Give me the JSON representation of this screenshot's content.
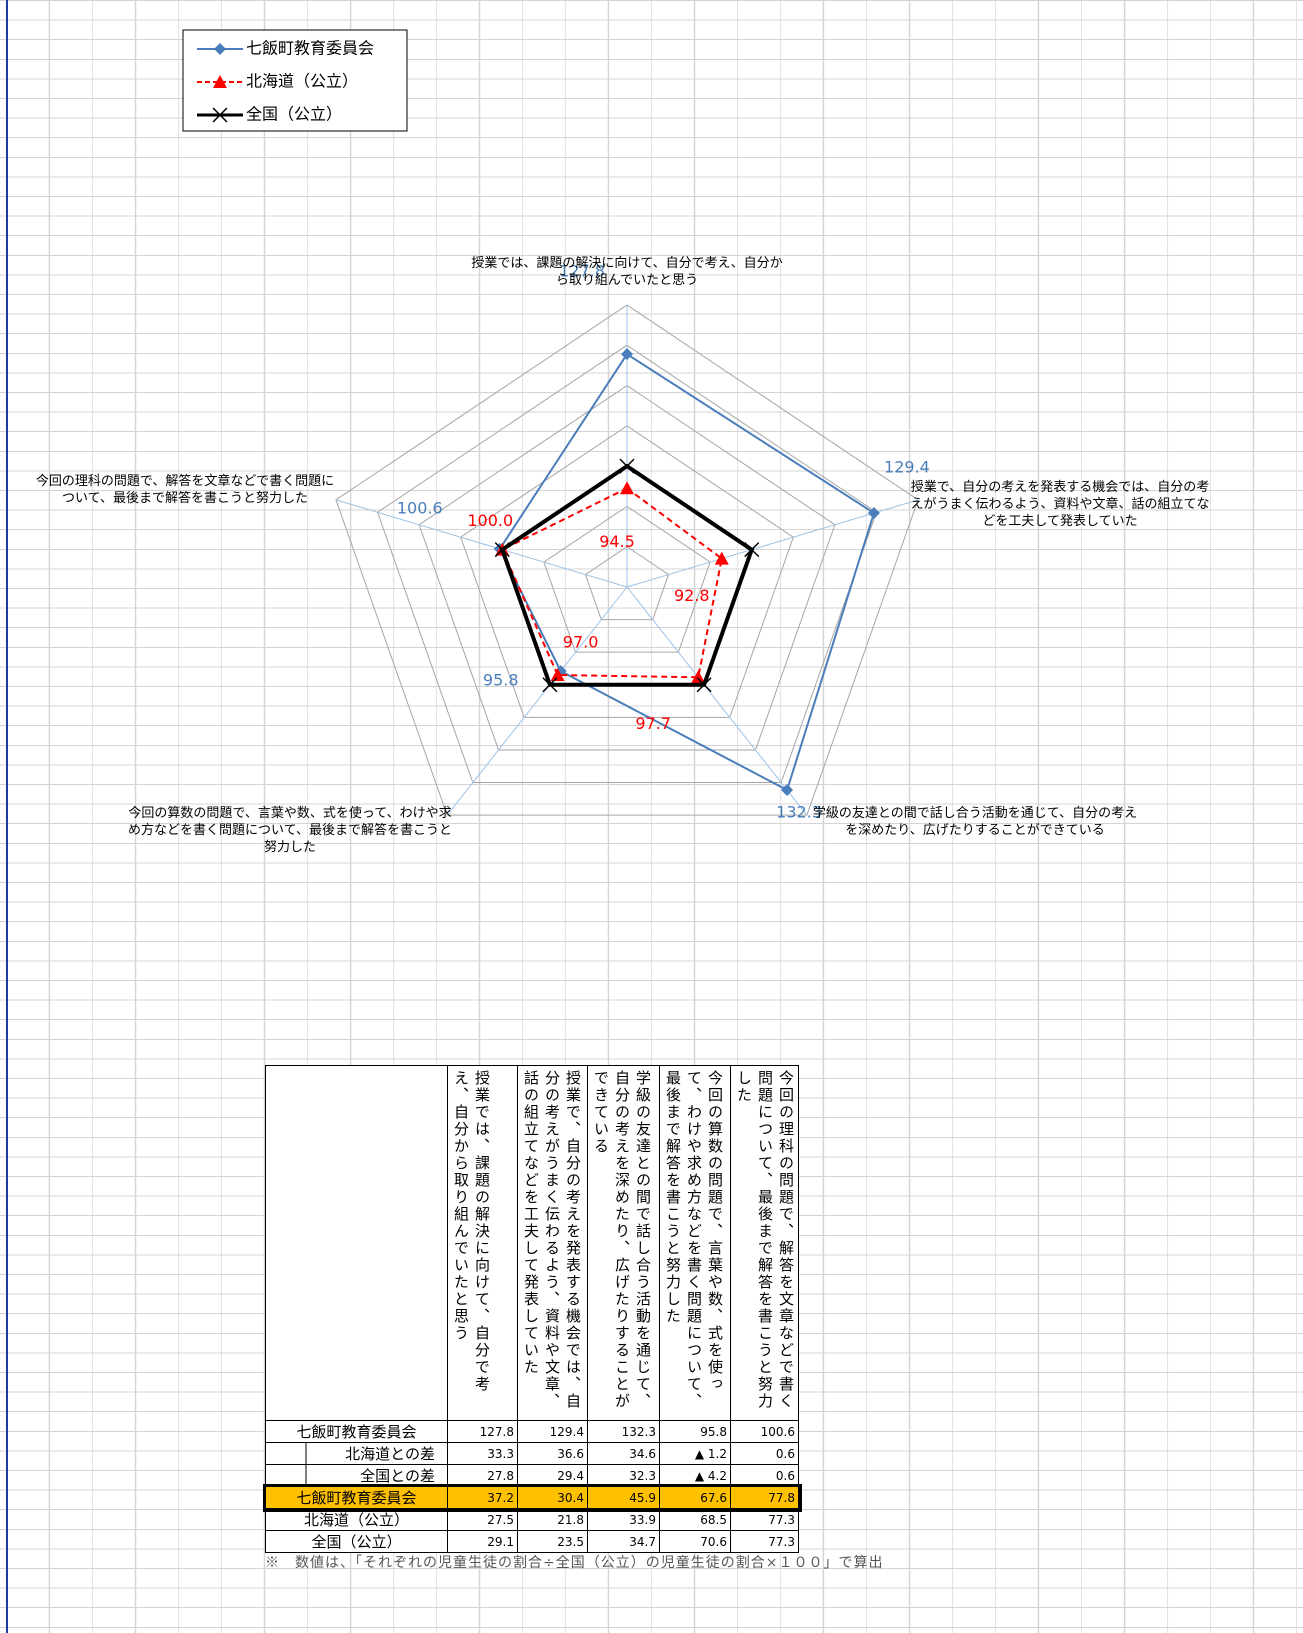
{
  "chart_data": {
    "type": "radar",
    "categories": [
      "授業では、課題の解決に向けて、自分で考え、自分から取り組んでいたと思う",
      "授業で、自分の考えを発表する機会では、自分の考えがうまく伝わるよう、資料や文章、話の組立てなどを工夫して発表していた",
      "学級の友達との間で話し合う活動を通じて、自分の考えを深めたり、広げたりすることができている",
      "今回の算数の問題で、言葉や数、式を使って、わけや求め方などを書く問題について、最後まで解答を書こうと努力した",
      "今回の理科の問題で、解答を文章などで書く問題について、最後まで解答を書こうと努力した"
    ],
    "series": [
      {
        "name": "七飯町教育委員会",
        "color": "#4a7ebb",
        "marker": "diamond",
        "dash": false,
        "values": [
          127.8,
          129.4,
          132.3,
          95.8,
          100.6
        ]
      },
      {
        "name": "北海道（公立）",
        "color": "#ff0000",
        "marker": "triangle",
        "dash": true,
        "values": [
          94.5,
          92.8,
          97.7,
          97.0,
          100.0
        ],
        "value_labels": [
          "94.5",
          "92.8",
          "97.7",
          "97.0",
          "100.0"
        ]
      },
      {
        "name": "全国（公立）",
        "color": "#000000",
        "marker": "x",
        "dash": false,
        "values": [
          100,
          100,
          100,
          100,
          100
        ]
      }
    ],
    "rlim": [
      70,
      140
    ],
    "rticks": [
      70,
      80,
      90,
      100,
      110,
      120,
      130,
      140
    ],
    "legend": "top-left"
  },
  "table": {
    "highlight_row": 3,
    "highlight_color": "#ffc000",
    "rows": [
      {
        "label": "七飯町教育委員会",
        "cells": [
          "127.8",
          "129.4",
          "132.3",
          "95.8",
          "100.6"
        ]
      },
      {
        "label": "北海道との差",
        "cells": [
          "33.3",
          "36.6",
          "34.6",
          "▲ 1.2",
          "0.6"
        ]
      },
      {
        "label": "全国との差",
        "cells": [
          "27.8",
          "29.4",
          "32.3",
          "▲ 4.2",
          "0.6"
        ]
      },
      {
        "label": "七飯町教育委員会",
        "cells": [
          "37.2",
          "30.4",
          "45.9",
          "67.6",
          "77.8"
        ]
      },
      {
        "label": "北海道（公立）",
        "cells": [
          "27.5",
          "21.8",
          "33.9",
          "68.5",
          "77.3"
        ]
      },
      {
        "label": "全国（公立）",
        "cells": [
          "29.1",
          "23.5",
          "34.7",
          "70.6",
          "77.3"
        ]
      }
    ]
  },
  "footnote": "※　数値は、「それぞれの児童生徒の割合÷全国（公立）の児童生徒の割合×１００」で算出"
}
